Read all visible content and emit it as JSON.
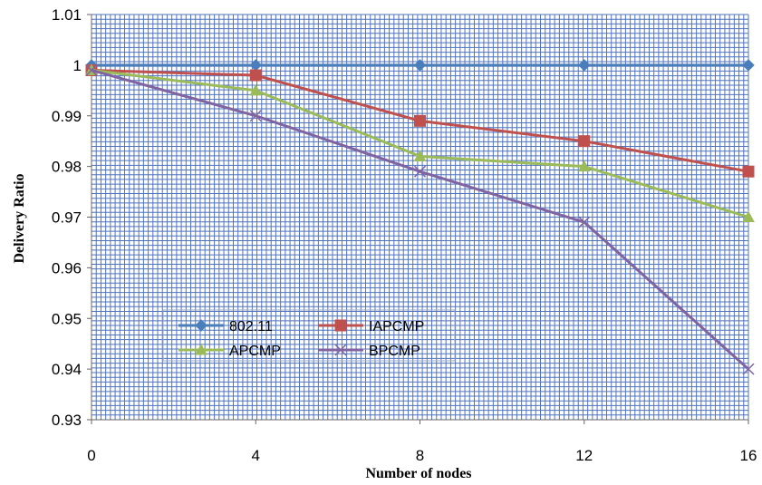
{
  "chart_data": {
    "type": "line",
    "title": "",
    "xlabel": "Number of nodes",
    "ylabel": "Delivery Ratio",
    "x": [
      0,
      4,
      8,
      12,
      16
    ],
    "xlim": [
      0,
      16
    ],
    "ylim": [
      0.93,
      1.01
    ],
    "yticks": [
      "0.93",
      "0.94",
      "0.95",
      "0.96",
      "0.97",
      "0.98",
      "0.99",
      "1",
      "1.01"
    ],
    "xticks": [
      "0",
      "4",
      "8",
      "12",
      "16"
    ],
    "grid": true,
    "grid_color": "#4f73bf",
    "legend_position": "lower-left",
    "series": [
      {
        "name": "802.11",
        "marker": "diamond",
        "color": "#4a7ebb",
        "values": [
          1.0,
          1.0,
          1.0,
          1.0,
          1.0
        ]
      },
      {
        "name": "IAPCMP",
        "marker": "square",
        "color": "#c0504d",
        "values": [
          0.999,
          0.998,
          0.989,
          0.985,
          0.979
        ]
      },
      {
        "name": "APCMP",
        "marker": "triangle",
        "color": "#9bbb59",
        "values": [
          0.999,
          0.995,
          0.982,
          0.98,
          0.97
        ]
      },
      {
        "name": "BPCMP",
        "marker": "x",
        "color": "#8064a2",
        "values": [
          0.999,
          0.99,
          0.979,
          0.969,
          0.94
        ]
      }
    ]
  }
}
